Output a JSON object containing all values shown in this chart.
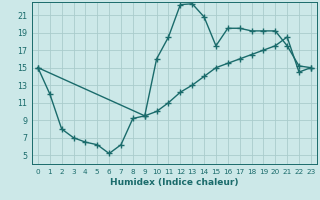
{
  "xlabel": "Humidex (Indice chaleur)",
  "bg_color": "#cce8e8",
  "grid_color": "#aacccc",
  "line_color": "#1a6b6b",
  "xlim": [
    -0.5,
    23.5
  ],
  "ylim": [
    4,
    22.5
  ],
  "xticks": [
    0,
    1,
    2,
    3,
    4,
    5,
    6,
    7,
    8,
    9,
    10,
    11,
    12,
    13,
    14,
    15,
    16,
    17,
    18,
    19,
    20,
    21,
    22,
    23
  ],
  "yticks": [
    5,
    7,
    9,
    11,
    13,
    15,
    17,
    19,
    21
  ],
  "line1_x": [
    0,
    1,
    2,
    3,
    4,
    5,
    6,
    7,
    8,
    9,
    10,
    11,
    12,
    13,
    14,
    15,
    16,
    17,
    18,
    19,
    20,
    21,
    22,
    23
  ],
  "line1_y": [
    15,
    12,
    8,
    7,
    6.5,
    6.2,
    5.2,
    6.2,
    9.2,
    9.5,
    16,
    18.5,
    22.2,
    22.3,
    20.8,
    17.5,
    19.5,
    19.5,
    19.2,
    19.2,
    19.2,
    17.5,
    15.2,
    15
  ],
  "line3_x": [
    0,
    9,
    10,
    11,
    12,
    13,
    14,
    15,
    16,
    17,
    18,
    19,
    20,
    21,
    22,
    23
  ],
  "line3_y": [
    15,
    9.5,
    10,
    11,
    12.2,
    13,
    14,
    15,
    15.5,
    16,
    16.5,
    17,
    17.5,
    18.5,
    14.5,
    15
  ],
  "marker": "+",
  "markersize": 4,
  "linewidth": 1.0
}
